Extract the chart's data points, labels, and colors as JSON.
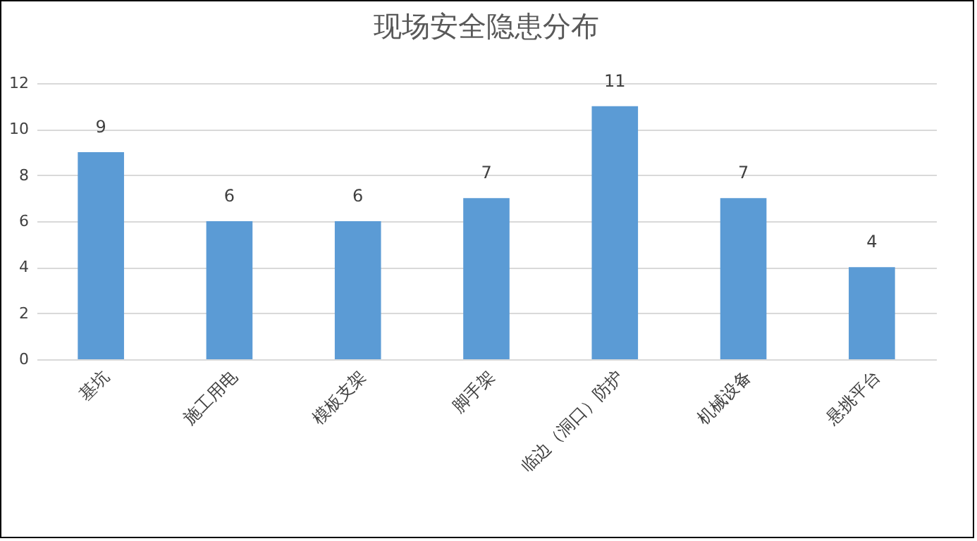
{
  "chart_data": {
    "type": "bar",
    "title": "现场安全隐患分布",
    "categories": [
      "基坑",
      "施工用电",
      "模板支架",
      "脚手架",
      "临边（洞口）防护",
      "机械设备",
      "悬挑平台"
    ],
    "values": [
      9,
      6,
      6,
      7,
      11,
      7,
      4
    ],
    "color": "#5b9bd5",
    "ylim": [
      0,
      12
    ],
    "yticks": [
      0,
      2,
      4,
      6,
      8,
      10,
      12
    ],
    "grid": "y",
    "data_labels": true
  }
}
